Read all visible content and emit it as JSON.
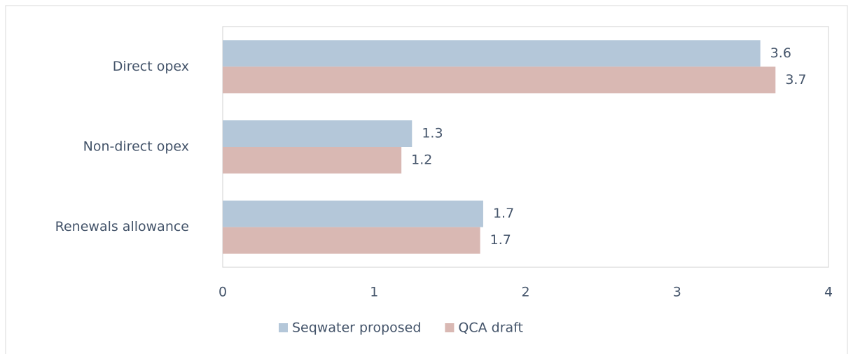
{
  "chart_data": {
    "type": "barh",
    "categories": [
      "Direct opex",
      "Non-direct opex",
      "Renewals allowance"
    ],
    "series": [
      {
        "name": "Seqwater proposed",
        "color": "#b4c7d9",
        "values": [
          3.55,
          1.25,
          1.72
        ],
        "value_labels": [
          "3.6",
          "1.3",
          "1.7"
        ]
      },
      {
        "name": "QCA draft",
        "color": "#d9b8b3",
        "values": [
          3.65,
          1.18,
          1.7
        ],
        "value_labels": [
          "3.7",
          "1.2",
          "1.7"
        ]
      }
    ],
    "xlim": [
      0,
      4
    ],
    "xticks": [
      0,
      1,
      2,
      3,
      4
    ],
    "grid": false,
    "legend": "bottom"
  }
}
